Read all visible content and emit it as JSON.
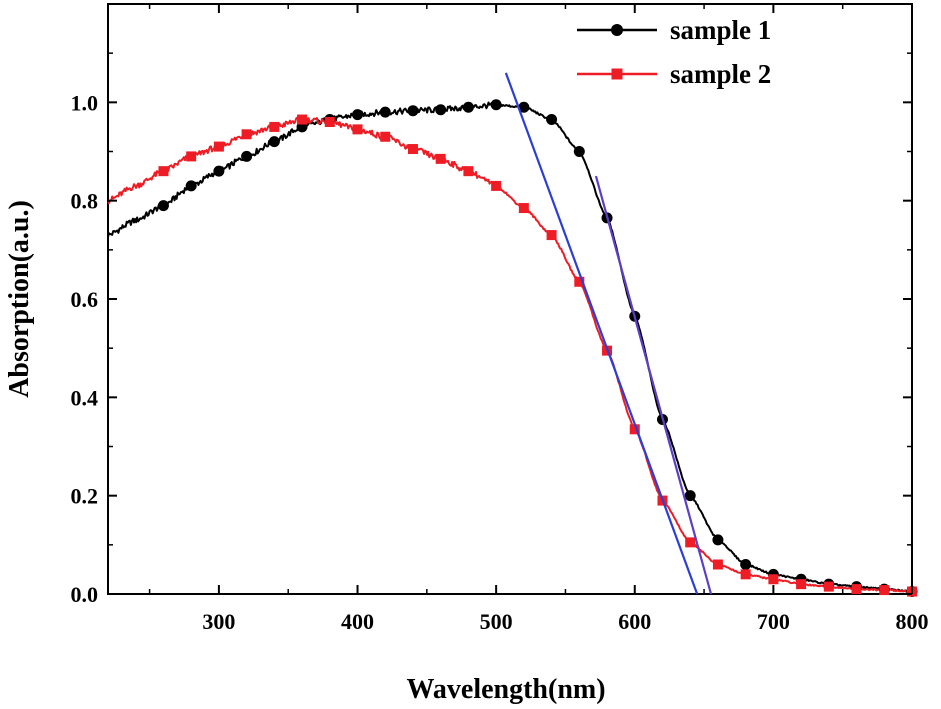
{
  "chart_data": {
    "type": "line",
    "title": "",
    "xlabel": "Wavelength(nm)",
    "ylabel": "Absorption(a.u.)",
    "xlim": [
      220,
      800
    ],
    "ylim": [
      0.0,
      1.2
    ],
    "xticks": [
      300,
      400,
      500,
      600,
      700,
      800
    ],
    "xtick_labels": [
      "300",
      "400",
      "500",
      "600",
      "700",
      "800"
    ],
    "yticks": [
      0.0,
      0.2,
      0.4,
      0.6,
      0.8,
      1.0
    ],
    "ytick_labels": [
      "0.0",
      "0.2",
      "0.4",
      "0.6",
      "0.8",
      "1.0"
    ],
    "legend_position": "top-right",
    "series": [
      {
        "name": "sample 1",
        "color": "#000000",
        "marker": "circle",
        "x": [
          220,
          240,
          260,
          280,
          300,
          320,
          340,
          360,
          380,
          400,
          420,
          440,
          460,
          480,
          500,
          520,
          540,
          560,
          580,
          600,
          620,
          640,
          660,
          680,
          700,
          720,
          740,
          760,
          780,
          800
        ],
        "y": [
          0.73,
          0.76,
          0.79,
          0.83,
          0.86,
          0.89,
          0.92,
          0.95,
          0.965,
          0.975,
          0.98,
          0.983,
          0.985,
          0.99,
          0.995,
          0.99,
          0.965,
          0.9,
          0.765,
          0.565,
          0.355,
          0.2,
          0.11,
          0.06,
          0.04,
          0.03,
          0.02,
          0.015,
          0.01,
          0.005
        ],
        "marker_x": [
          260,
          280,
          300,
          320,
          340,
          360,
          380,
          400,
          420,
          440,
          460,
          480,
          500,
          520,
          540,
          560,
          580,
          600,
          620,
          640,
          660,
          680,
          700,
          720,
          740,
          760,
          780,
          800
        ]
      },
      {
        "name": "sample 2",
        "color": "#ee1c25",
        "marker": "square",
        "x": [
          220,
          240,
          260,
          280,
          300,
          320,
          340,
          360,
          380,
          400,
          420,
          440,
          460,
          480,
          500,
          520,
          540,
          560,
          580,
          600,
          620,
          640,
          660,
          680,
          700,
          720,
          740,
          760,
          780,
          800
        ],
        "y": [
          0.8,
          0.83,
          0.86,
          0.89,
          0.91,
          0.935,
          0.95,
          0.965,
          0.96,
          0.945,
          0.93,
          0.905,
          0.885,
          0.86,
          0.83,
          0.785,
          0.73,
          0.635,
          0.495,
          0.335,
          0.19,
          0.105,
          0.06,
          0.04,
          0.03,
          0.02,
          0.015,
          0.01,
          0.008,
          0.005
        ],
        "marker_x": [
          260,
          280,
          300,
          320,
          340,
          360,
          380,
          400,
          420,
          440,
          460,
          480,
          500,
          520,
          540,
          560,
          580,
          600,
          620,
          640,
          660,
          680,
          700,
          720,
          740,
          760,
          780,
          800
        ]
      }
    ],
    "annotations": [
      {
        "name": "tangent-line-sample-2",
        "color": "#2b3fd6",
        "x": [
          507,
          645
        ],
        "y": [
          1.06,
          0.0
        ]
      },
      {
        "name": "tangent-line-sample-1",
        "color": "#5b3fc8",
        "x": [
          572,
          655
        ],
        "y": [
          0.85,
          0.0
        ]
      }
    ]
  }
}
